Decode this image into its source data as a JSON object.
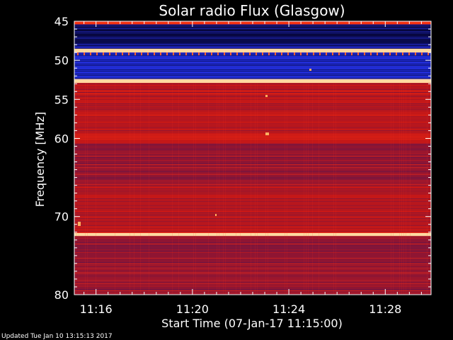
{
  "chart_data": {
    "type": "heatmap",
    "title": "Solar radio Flux (Glasgow)",
    "xlabel": "Start Time (07-Jan-17 11:15:00)",
    "ylabel": "Frequency [MHz]",
    "x_ticks": [
      "11:16",
      "11:20",
      "11:24",
      "11:28"
    ],
    "x_tick_minutes": [
      1,
      5,
      9,
      13
    ],
    "xlim_minutes": [
      0.1,
      14.9
    ],
    "y_ticks": [
      45,
      50,
      55,
      60,
      70,
      80
    ],
    "ylim": [
      45,
      80
    ],
    "bands": [
      {
        "f0": 45.0,
        "f1": 45.4,
        "level": "high"
      },
      {
        "f0": 45.4,
        "f1": 48.5,
        "level": "low"
      },
      {
        "f0": 48.5,
        "f1": 49.0,
        "level": "peak"
      },
      {
        "f0": 49.0,
        "f1": 52.4,
        "level": "lowmid"
      },
      {
        "f0": 52.4,
        "f1": 52.9,
        "level": "peak"
      },
      {
        "f0": 52.9,
        "f1": 60.6,
        "level": "mid"
      },
      {
        "f0": 60.6,
        "f1": 66.0,
        "level": "midlow"
      },
      {
        "f0": 66.0,
        "f1": 72.1,
        "level": "mid"
      },
      {
        "f0": 72.1,
        "f1": 72.5,
        "level": "peak"
      },
      {
        "f0": 72.5,
        "f1": 80.0,
        "level": "midlow"
      }
    ],
    "colors": {
      "background": "#000000",
      "low": "#10104a",
      "lowmid": "#1e2ad0",
      "mid": "#c01818",
      "midlow": "#8a1634",
      "high": "#ff3a10",
      "peak": "#ffd9a0"
    }
  },
  "footer": {
    "updated": "Updated Tue Jan 10 13:15:13 2017"
  }
}
